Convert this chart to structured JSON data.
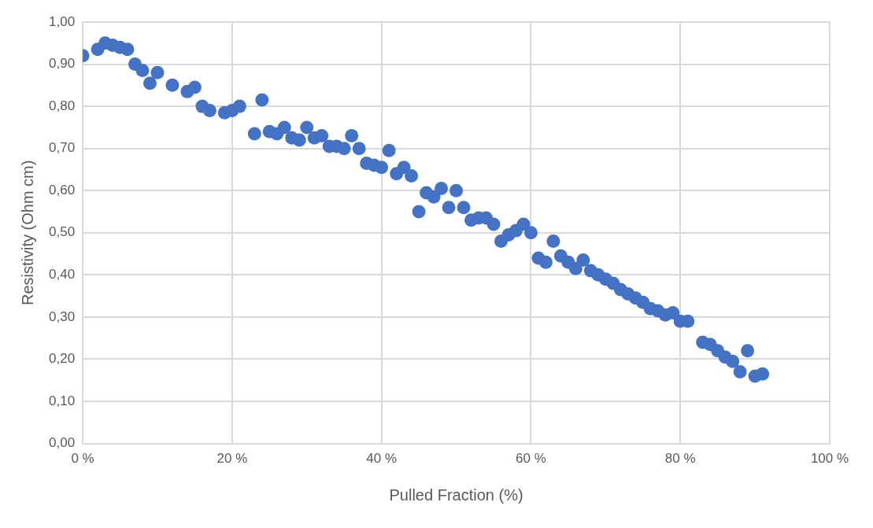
{
  "chart_data": {
    "type": "scatter",
    "xlabel": "Pulled Fraction (%)",
    "ylabel": "Resistivity (Ohm cm)",
    "x": [
      0,
      2,
      3,
      4,
      5,
      6,
      7,
      8,
      9,
      10,
      12,
      14,
      15,
      16,
      17,
      19,
      20,
      21,
      23,
      24,
      25,
      26,
      27,
      28,
      29,
      30,
      31,
      32,
      33,
      34,
      35,
      36,
      37,
      38,
      39,
      40,
      41,
      42,
      43,
      44,
      45,
      46,
      47,
      48,
      49,
      50,
      51,
      52,
      53,
      54,
      55,
      56,
      57,
      58,
      59,
      60,
      61,
      62,
      63,
      64,
      65,
      66,
      67,
      68,
      69,
      70,
      71,
      72,
      73,
      74,
      75,
      76,
      77,
      78,
      79,
      80,
      81,
      83,
      84,
      85,
      86,
      87,
      88,
      89,
      90,
      91
    ],
    "series": [
      {
        "color": "#4472c4",
        "values": [
          0.92,
          0.935,
          0.95,
          0.945,
          0.94,
          0.935,
          0.9,
          0.885,
          0.855,
          0.88,
          0.85,
          0.835,
          0.845,
          0.8,
          0.79,
          0.785,
          0.79,
          0.8,
          0.735,
          0.815,
          0.74,
          0.735,
          0.75,
          0.725,
          0.72,
          0.75,
          0.725,
          0.73,
          0.705,
          0.705,
          0.7,
          0.73,
          0.7,
          0.665,
          0.66,
          0.655,
          0.695,
          0.64,
          0.655,
          0.635,
          0.55,
          0.595,
          0.585,
          0.605,
          0.56,
          0.6,
          0.56,
          0.53,
          0.535,
          0.535,
          0.52,
          0.48,
          0.495,
          0.505,
          0.52,
          0.5,
          0.44,
          0.43,
          0.48,
          0.445,
          0.43,
          0.415,
          0.435,
          0.41,
          0.4,
          0.39,
          0.38,
          0.365,
          0.355,
          0.345,
          0.335,
          0.32,
          0.315,
          0.305,
          0.31,
          0.29,
          0.29,
          0.24,
          0.235,
          0.22,
          0.205,
          0.195,
          0.17,
          0.22,
          0.16,
          0.165
        ]
      }
    ],
    "xlim": [
      0,
      100
    ],
    "xticks": [
      {
        "value": 0,
        "label": "0 %"
      },
      {
        "value": 20,
        "label": "20 %"
      },
      {
        "value": 40,
        "label": "40 %"
      },
      {
        "value": 60,
        "label": "60 %"
      },
      {
        "value": 80,
        "label": "80 %"
      },
      {
        "value": 100,
        "label": "100 %"
      }
    ],
    "ylim": [
      0,
      1
    ],
    "yticks": [
      {
        "value": 0,
        "label": "0,00"
      },
      {
        "value": 0.1,
        "label": "0,10"
      },
      {
        "value": 0.2,
        "label": "0,20"
      },
      {
        "value": 0.3,
        "label": "0,30"
      },
      {
        "value": 0.4,
        "label": "0,40"
      },
      {
        "value": 0.5,
        "label": "0,50"
      },
      {
        "value": 0.6,
        "label": "0,60"
      },
      {
        "value": 0.7,
        "label": "0,70"
      },
      {
        "value": 0.8,
        "label": "0,80"
      },
      {
        "value": 0.9,
        "label": "0,90"
      },
      {
        "value": 1,
        "label": "1,00"
      }
    ],
    "grid": true,
    "marker": "circle",
    "legend": false
  }
}
